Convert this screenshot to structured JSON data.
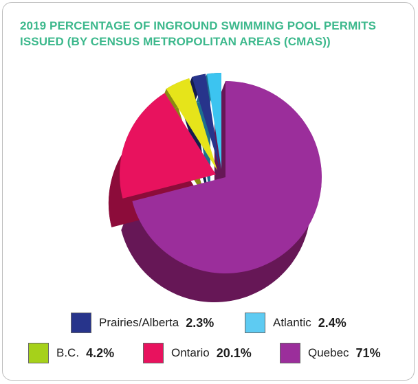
{
  "title_lines": [
    "2019 PERCENTAGE OF INGROUND SWIMMING POOL PERMITS",
    "ISSUED (BY CENSUS METROPOLITAN AREAS (CMAS))"
  ],
  "chart_data": {
    "type": "pie",
    "title": "2019 PERCENTAGE OF INGROUND SWIMMING POOL PERMITS ISSUED (BY CENSUS METROPOLITAN AREAS (CMAS))",
    "start": "12 o'clock",
    "direction": "clockwise",
    "style": "3d-exploded",
    "legend_position": "bottom",
    "slices": [
      {
        "label": "Quebec",
        "value": 71,
        "display": "71%",
        "color": "#9b2e9b",
        "side_color": "#661756"
      },
      {
        "label": "Ontario",
        "value": 20.1,
        "display": "20.1%",
        "color": "#e8125e",
        "side_color": "#8c0c3a"
      },
      {
        "label": "B.C.",
        "value": 4.2,
        "display": "4.2%",
        "color": "#e6e41a",
        "side_color": "#8a8a12"
      },
      {
        "label": "Prairies/Alberta",
        "value": 2.3,
        "display": "2.3%",
        "color": "#27348b",
        "side_color": "#151d4e"
      },
      {
        "label": "Atlantic",
        "value": 2.4,
        "display": "2.4%",
        "color": "#3cc4f0",
        "side_color": "#1d6f8f"
      }
    ],
    "legend_swatch_colors": {
      "Prairies/Alberta": "#27348b",
      "Atlantic": "#5ecbf2",
      "B.C.": "#a6d11a",
      "Ontario": "#e8125e",
      "Quebec": "#9b2e9b"
    }
  }
}
